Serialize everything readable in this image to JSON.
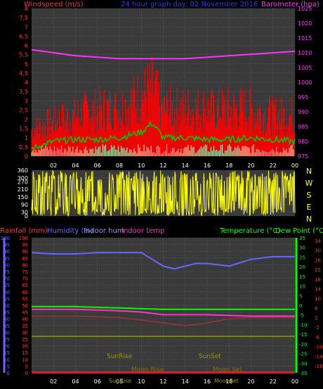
{
  "colors": {
    "bg": "#000000",
    "plot_bg": "#3c3c3c",
    "grid": "#707070",
    "wind": "#ff0000",
    "wind_avg": "#00cc00",
    "wind_min": "#ccffcc",
    "baro": "#ff33ff",
    "winddir": "#ffff00",
    "humidity": "#6666ff",
    "indoor_hum": "#9999ff",
    "indoor_temp": "#ff33cc",
    "temperature": "#00ff00",
    "dewpoint": "#ff3333",
    "rain": "#ff0000",
    "sun": "#999900",
    "moon": "#996600",
    "axis_left_text": "#ff3333",
    "axis_left2_text": "#6666ff",
    "axis_right_text_green": "#00ff00",
    "axis_right_text_red": "#ff3333"
  },
  "chart_data": [
    {
      "type": "line",
      "title": "24 hour graph day: 02 November 2016",
      "ylabel_left": "Windspeed (m/s)",
      "ylabel_right": "Barometer (hpa)",
      "x_ticks": [
        "02",
        "04",
        "06",
        "08",
        "10",
        "12",
        "14",
        "16",
        "18",
        "20",
        "22",
        "00"
      ],
      "y_left_ticks": [
        "0",
        "0,5",
        "1",
        "1,5",
        "2",
        "2,5",
        "3",
        "3,5",
        "4",
        "4,5",
        "5",
        "5,5",
        "6",
        "6,5",
        "7",
        "7,5",
        "8"
      ],
      "y_right_ticks": [
        "975",
        "980",
        "985",
        "990",
        "995",
        "1000",
        "1005",
        "1010",
        "1015",
        "1020",
        "1025"
      ],
      "ylim_left": [
        0,
        8
      ],
      "ylim_right": [
        975,
        1025
      ],
      "series": [
        {
          "name": "Windspeed",
          "x": [
            0,
            2,
            4,
            6,
            8,
            10,
            11,
            12,
            14,
            16,
            18,
            20,
            22,
            24
          ],
          "values": [
            2.0,
            2.5,
            3.0,
            3.5,
            3.5,
            4.5,
            5.0,
            3.5,
            3.5,
            3.5,
            3.5,
            3.5,
            3.0,
            3.0
          ]
        },
        {
          "name": "Wind average",
          "x": [
            0,
            2,
            4,
            6,
            8,
            10,
            11,
            12,
            14,
            16,
            18,
            20,
            22,
            24
          ],
          "values": [
            0.4,
            0.8,
            0.9,
            0.9,
            1.0,
            1.3,
            1.8,
            1.0,
            1.0,
            0.9,
            0.9,
            1.0,
            0.9,
            0.8
          ]
        },
        {
          "name": "Barometer",
          "x": [
            0,
            2,
            4,
            6,
            8,
            10,
            12,
            14,
            16,
            18,
            20,
            22,
            24
          ],
          "values": [
            1011,
            1010,
            1009,
            1008.5,
            1008,
            1008,
            1008,
            1008,
            1008.5,
            1009,
            1009.5,
            1010,
            1010.5
          ]
        }
      ]
    },
    {
      "type": "line",
      "right_labels": [
        "N",
        "W",
        "S",
        "E",
        "N"
      ],
      "y_ticks": [
        "0",
        "30",
        "90",
        "150",
        "210",
        "270",
        "300",
        "360"
      ],
      "ylim": [
        0,
        360
      ],
      "series": [
        {
          "name": "Wind direction",
          "x": [
            0,
            2,
            4,
            6,
            8,
            10,
            12,
            14,
            16,
            18,
            20,
            22,
            24
          ],
          "values": [
            270,
            40,
            300,
            60,
            30,
            320,
            270,
            30,
            300,
            40,
            310,
            30,
            60
          ]
        }
      ]
    },
    {
      "type": "line",
      "legend": [
        "Rainfall (mm)",
        "Humidity (%)",
        "Indoor hum",
        "Indoor temp",
        "Temperature (°C)",
        "Dew Point (°C)"
      ],
      "y_left_ticks": [
        "0",
        "5",
        "10",
        "15",
        "20",
        "25",
        "30",
        "35",
        "40",
        "45",
        "50",
        "55",
        "60",
        "65",
        "70",
        "75",
        "80",
        "85",
        "90",
        "95",
        "100"
      ],
      "y_green_ticks": [
        "-35",
        "-30",
        "-25",
        "-20",
        "-15",
        "-10",
        "-5",
        "0",
        "5",
        "10",
        "15",
        "20",
        "25",
        "30",
        "35"
      ],
      "y_red_ticks": [
        "-18",
        "-14",
        "-10",
        "-6",
        "-2",
        "2",
        "6",
        "10",
        "14",
        "18",
        "22",
        "26",
        "30",
        "34"
      ],
      "annotations": [
        "SunRise",
        "SunSet",
        "Moon Rise",
        "Moon Set",
        "SunRise",
        "MoonSet"
      ],
      "x_ticks": [
        "02",
        "04",
        "06",
        "08",
        "10",
        "12",
        "14",
        "16",
        "18",
        "20",
        "22",
        "00"
      ],
      "series": [
        {
          "name": "Humidity",
          "x": [
            0,
            2,
            4,
            6,
            8,
            10,
            11,
            12,
            13,
            14,
            15,
            16,
            18,
            20,
            22,
            24
          ],
          "values": [
            89,
            88,
            88,
            89,
            89,
            89,
            84,
            79,
            77,
            79,
            81,
            81,
            79,
            84,
            86,
            86
          ]
        },
        {
          "name": "Indoor temp",
          "x": [
            0,
            4,
            8,
            10,
            11,
            12,
            16,
            20,
            24
          ],
          "values": [
            47,
            47,
            46,
            45,
            44,
            43,
            43,
            42,
            42
          ]
        },
        {
          "name": "Temperature",
          "x": [
            0,
            4,
            8,
            12,
            16,
            20,
            24
          ],
          "values": [
            49,
            49,
            48,
            47,
            47,
            47,
            47
          ]
        },
        {
          "name": "Dew Point",
          "x": [
            0,
            4,
            8,
            10,
            12,
            14,
            16,
            18,
            20,
            24
          ],
          "values": [
            42,
            42,
            41,
            39,
            37,
            35,
            37,
            40,
            41,
            41
          ]
        },
        {
          "name": "Rainfall",
          "x": [
            0,
            24
          ],
          "values": [
            0,
            0
          ]
        }
      ]
    }
  ],
  "labels": {
    "sunrise": "SunRise",
    "sunset": "SunSet",
    "moonrise": "Moon Rise",
    "moonset": "Moon Set",
    "sunrise_bottom": "SunRise",
    "moonset_bottom": "MoonSet"
  }
}
